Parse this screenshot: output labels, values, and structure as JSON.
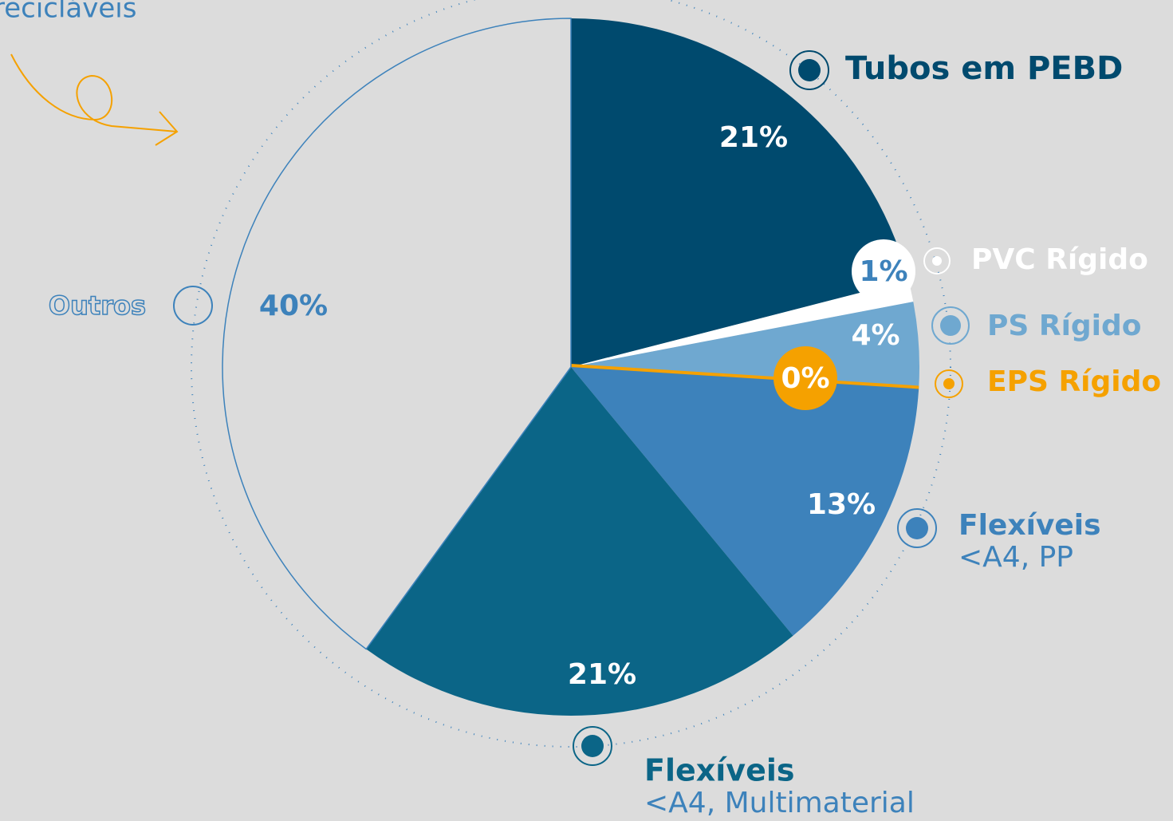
{
  "chart_data": {
    "type": "pie",
    "title": "recicláveis",
    "categories": [
      "Tubos em PEBD",
      "PVC Rígido",
      "PS Rígido",
      "EPS Rígido",
      "Flexíveis",
      "Flexíveis",
      "Outros"
    ],
    "sublabels": [
      null,
      null,
      null,
      null,
      "<A4, PP",
      "<A4, Multimaterial",
      null
    ],
    "values": [
      21,
      1,
      4,
      0,
      13,
      21,
      40
    ],
    "value_labels": [
      "21%",
      "1%",
      "4%",
      "0%",
      "13%",
      "21%",
      "40%"
    ],
    "colors": [
      "#004a6e",
      "#ffffff",
      "#6fa8d0",
      "#f5a100",
      "#3d82bb",
      "#0b6587",
      "#dcdcdc"
    ]
  }
}
